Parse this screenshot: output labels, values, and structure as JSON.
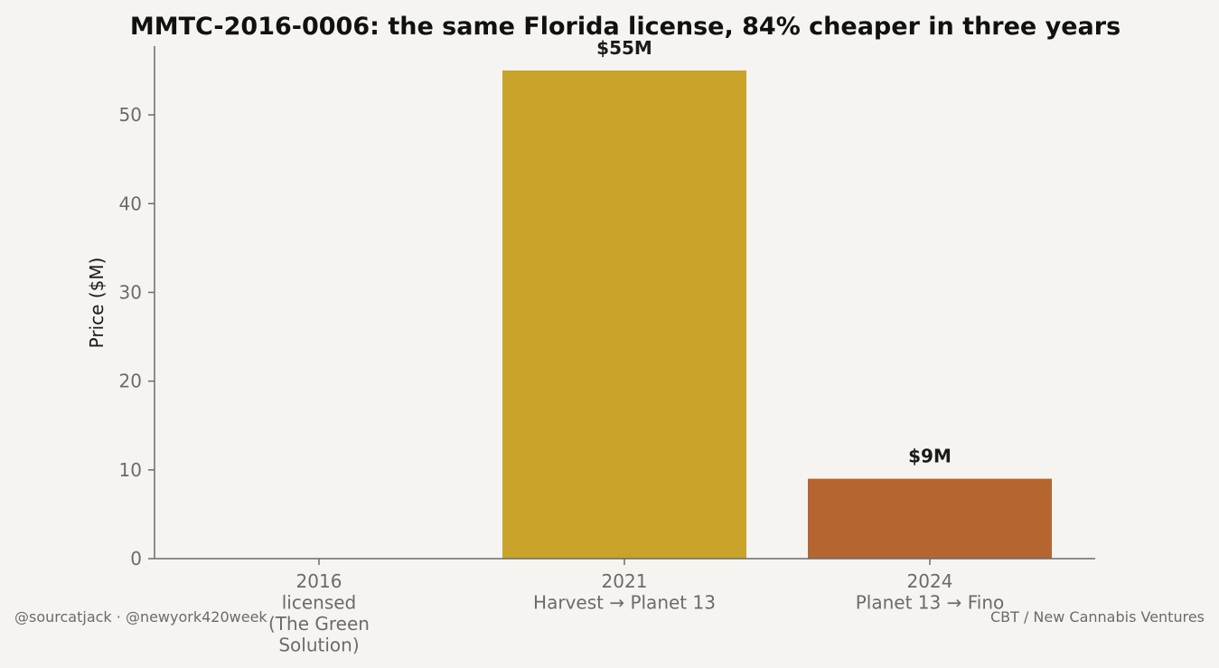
{
  "chart_data": {
    "type": "bar",
    "title": "MMTC-2016-0006: the same Florida license, 84% cheaper in three years",
    "ylabel": "Price ($M)",
    "xlabel": "",
    "ylim": [
      0,
      57.75
    ],
    "yticks": [
      0,
      10,
      20,
      30,
      40,
      50
    ],
    "grid": false,
    "categories": [
      [
        "2016",
        "licensed",
        "(The Green",
        "Solution)"
      ],
      [
        "2021",
        "Harvest → Planet 13"
      ],
      [
        "2024",
        "Planet 13 → Fino"
      ]
    ],
    "values": [
      0,
      55,
      9
    ],
    "data_labels": [
      "",
      "$55M",
      "$9M"
    ],
    "colors": [
      "#c9a22a",
      "#c9a22a",
      "#b5652f"
    ],
    "axis_color": "#6b6b6b"
  },
  "footer": {
    "left": "@sourcatjack · @newyork420week",
    "right": "CBT / New Cannabis Ventures"
  }
}
